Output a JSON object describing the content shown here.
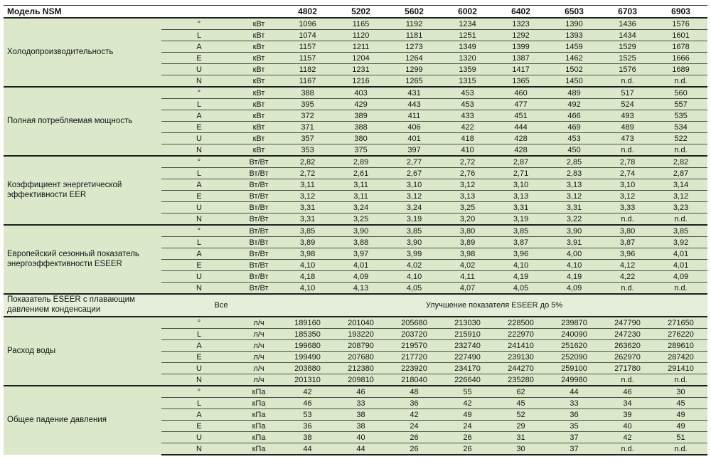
{
  "header": {
    "model_label": "Модель NSM",
    "models": [
      "4802",
      "5202",
      "5602",
      "6002",
      "6402",
      "6503",
      "6703",
      "6903"
    ]
  },
  "colors": {
    "row_green": "#dce8ca",
    "note_green": "#e4eed8",
    "thin_line": "#4d4d4d",
    "thick_line": "#1f1f1f"
  },
  "blocks": [
    {
      "type": "section",
      "label": "Холодопроизводительность",
      "unit": "кВт",
      "rows": [
        {
          "sym": "°",
          "values": [
            "1096",
            "1165",
            "1192",
            "1234",
            "1323",
            "1390",
            "1436",
            "1576"
          ]
        },
        {
          "sym": "L",
          "values": [
            "1074",
            "1120",
            "1181",
            "1251",
            "1292",
            "1393",
            "1434",
            "1601"
          ]
        },
        {
          "sym": "A",
          "values": [
            "1157",
            "1211",
            "1273",
            "1349",
            "1399",
            "1459",
            "1529",
            "1678"
          ]
        },
        {
          "sym": "E",
          "values": [
            "1157",
            "1204",
            "1264",
            "1320",
            "1387",
            "1462",
            "1525",
            "1666"
          ]
        },
        {
          "sym": "U",
          "values": [
            "1182",
            "1231",
            "1299",
            "1359",
            "1417",
            "1502",
            "1576",
            "1689"
          ]
        },
        {
          "sym": "N",
          "values": [
            "1167",
            "1216",
            "1265",
            "1315",
            "1365",
            "1450",
            "n.d.",
            "n.d."
          ]
        }
      ]
    },
    {
      "type": "section",
      "label": "Полная потребляемая мощность",
      "unit": "кВт",
      "rows": [
        {
          "sym": "°",
          "values": [
            "388",
            "403",
            "431",
            "453",
            "460",
            "489",
            "517",
            "560"
          ]
        },
        {
          "sym": "L",
          "values": [
            "395",
            "429",
            "443",
            "453",
            "477",
            "492",
            "524",
            "557"
          ]
        },
        {
          "sym": "A",
          "values": [
            "372",
            "389",
            "411",
            "433",
            "451",
            "466",
            "493",
            "535"
          ]
        },
        {
          "sym": "E",
          "values": [
            "371",
            "388",
            "406",
            "422",
            "444",
            "469",
            "489",
            "534"
          ]
        },
        {
          "sym": "U",
          "values": [
            "357",
            "380",
            "401",
            "418",
            "428",
            "453",
            "473",
            "522"
          ]
        },
        {
          "sym": "N",
          "values": [
            "353",
            "375",
            "397",
            "410",
            "428",
            "450",
            "n.d.",
            "n.d."
          ]
        }
      ]
    },
    {
      "type": "section",
      "label": "Коэффициент энергетической эффективности EER",
      "unit": "Вт/Вт",
      "rows": [
        {
          "sym": "°",
          "values": [
            "2,82",
            "2,89",
            "2,77",
            "2,72",
            "2,87",
            "2,85",
            "2,78",
            "2,82"
          ]
        },
        {
          "sym": "L",
          "values": [
            "2,72",
            "2,61",
            "2,67",
            "2,76",
            "2,71",
            "2,83",
            "2,74",
            "2,87"
          ]
        },
        {
          "sym": "A",
          "values": [
            "3,11",
            "3,11",
            "3,10",
            "3,12",
            "3,10",
            "3,13",
            "3,10",
            "3,14"
          ]
        },
        {
          "sym": "E",
          "values": [
            "3,12",
            "3,11",
            "3,12",
            "3,13",
            "3,13",
            "3,12",
            "3,12",
            "3,12"
          ]
        },
        {
          "sym": "U",
          "values": [
            "3,31",
            "3,24",
            "3,24",
            "3,25",
            "3,31",
            "3,31",
            "3,33",
            "3,23"
          ]
        },
        {
          "sym": "N",
          "values": [
            "3,31",
            "3,25",
            "3,19",
            "3,20",
            "3,19",
            "3,22",
            "n.d.",
            "n.d."
          ]
        }
      ]
    },
    {
      "type": "section",
      "label": "Европейский сезонный показатель энергоэффективности ESEER",
      "unit": "Вт/Вт",
      "rows": [
        {
          "sym": "°",
          "values": [
            "3,85",
            "3,90",
            "3,85",
            "3,80",
            "3,85",
            "3,90",
            "3,80",
            "3,85"
          ]
        },
        {
          "sym": "L",
          "values": [
            "3,89",
            "3,88",
            "3,90",
            "3,89",
            "3,87",
            "3,91",
            "3,87",
            "3,92"
          ]
        },
        {
          "sym": "A",
          "values": [
            "3,98",
            "3,97",
            "3,99",
            "3,98",
            "3,96",
            "4,00",
            "3,96",
            "4,01"
          ]
        },
        {
          "sym": "E",
          "values": [
            "4,10",
            "4,01",
            "4,02",
            "4,02",
            "4,10",
            "4,10",
            "4,12",
            "4,01"
          ]
        },
        {
          "sym": "U",
          "values": [
            "4,18",
            "4,09",
            "4,10",
            "4,11",
            "4,19",
            "4,19",
            "4,22",
            "4,09"
          ]
        },
        {
          "sym": "N",
          "values": [
            "4,10",
            "4,13",
            "4,05",
            "4,07",
            "4,05",
            "4,09",
            "n.d.",
            "n.d."
          ]
        }
      ]
    },
    {
      "type": "note",
      "label": "Показатель  ESEER с плавающим давлением конденсации",
      "scope": "Все",
      "note": "Улучшение показателя ESEER до 5%"
    },
    {
      "type": "section",
      "label": "Расход воды",
      "unit": "л/ч",
      "rows": [
        {
          "sym": "°",
          "values": [
            "189160",
            "201040",
            "205680",
            "213030",
            "228500",
            "239870",
            "247790",
            "271650"
          ]
        },
        {
          "sym": "L",
          "values": [
            "185350",
            "193220",
            "203720",
            "215910",
            "222970",
            "240090",
            "247230",
            "276220"
          ]
        },
        {
          "sym": "A",
          "values": [
            "199680",
            "208790",
            "219570",
            "232740",
            "241410",
            "251620",
            "263620",
            "289610"
          ]
        },
        {
          "sym": "E",
          "values": [
            "199490",
            "207680",
            "217720",
            "227490",
            "239130",
            "252090",
            "262970",
            "287420"
          ]
        },
        {
          "sym": "U",
          "values": [
            "203880",
            "212380",
            "223920",
            "234170",
            "244270",
            "259100",
            "271780",
            "291410"
          ]
        },
        {
          "sym": "N",
          "values": [
            "201310",
            "209810",
            "218040",
            "226640",
            "235280",
            "249980",
            "n.d.",
            "n.d."
          ]
        }
      ]
    },
    {
      "type": "section",
      "label": "Общее падение давления",
      "unit": "кПа",
      "rows": [
        {
          "sym": "°",
          "values": [
            "42",
            "46",
            "48",
            "55",
            "62",
            "44",
            "46",
            "30"
          ]
        },
        {
          "sym": "L",
          "values": [
            "46",
            "33",
            "36",
            "42",
            "45",
            "33",
            "34",
            "45"
          ]
        },
        {
          "sym": "A",
          "values": [
            "53",
            "38",
            "42",
            "49",
            "52",
            "36",
            "39",
            "49"
          ]
        },
        {
          "sym": "E",
          "values": [
            "36",
            "38",
            "24",
            "24",
            "29",
            "35",
            "40",
            "49"
          ]
        },
        {
          "sym": "U",
          "values": [
            "38",
            "40",
            "26",
            "26",
            "31",
            "37",
            "42",
            "51"
          ]
        },
        {
          "sym": "N",
          "values": [
            "44",
            "44",
            "26",
            "26",
            "30",
            "37",
            "n.d.",
            "n.d."
          ]
        }
      ]
    }
  ]
}
